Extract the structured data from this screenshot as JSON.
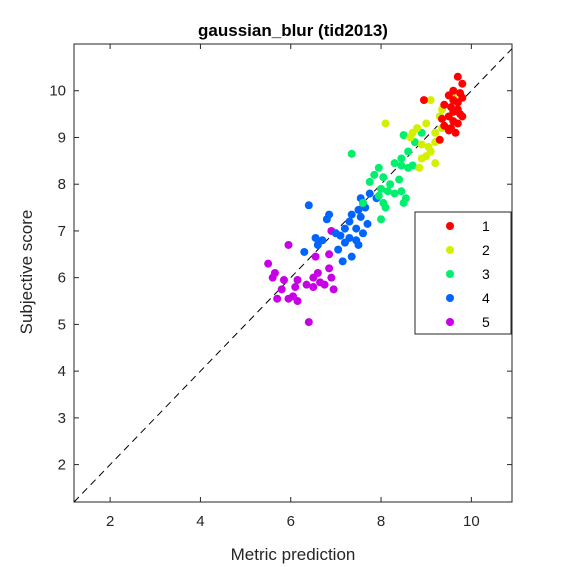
{
  "chart_data": {
    "type": "scatter",
    "title": "gaussian_blur (tid2013)",
    "xlabel": "Metric prediction",
    "ylabel": "Subjective score",
    "xlim": [
      1.2,
      10.9
    ],
    "ylim": [
      1.2,
      11.0
    ],
    "xticks": [
      "2",
      "4",
      "6",
      "8",
      "10"
    ],
    "yticks": [
      "2",
      "3",
      "4",
      "5",
      "6",
      "7",
      "8",
      "9",
      "10"
    ],
    "xtick_values": [
      2,
      4,
      6,
      8,
      10
    ],
    "ytick_values": [
      2,
      3,
      4,
      5,
      6,
      7,
      8,
      9,
      10
    ],
    "reference_line": "dashed y = x",
    "grid": false,
    "legend_position": "right",
    "series": [
      {
        "name": "1",
        "color": "#ff0000",
        "points": [
          [
            9.7,
            10.3
          ],
          [
            9.8,
            10.15
          ],
          [
            9.6,
            10.0
          ],
          [
            9.75,
            9.95
          ],
          [
            9.5,
            9.9
          ],
          [
            9.8,
            9.85
          ],
          [
            8.95,
            9.8
          ],
          [
            9.6,
            9.8
          ],
          [
            9.7,
            9.75
          ],
          [
            9.4,
            9.7
          ],
          [
            9.55,
            9.65
          ],
          [
            9.7,
            9.6
          ],
          [
            9.6,
            9.55
          ],
          [
            9.75,
            9.5
          ],
          [
            9.5,
            9.45
          ],
          [
            9.35,
            9.4
          ],
          [
            9.6,
            9.35
          ],
          [
            9.7,
            9.3
          ],
          [
            9.55,
            9.2
          ],
          [
            9.4,
            9.25
          ],
          [
            9.65,
            9.1
          ],
          [
            9.3,
            8.95
          ],
          [
            9.5,
            9.15
          ],
          [
            9.8,
            9.45
          ]
        ]
      },
      {
        "name": "2",
        "color": "#d4f000",
        "points": [
          [
            9.6,
            9.85
          ],
          [
            9.1,
            9.8
          ],
          [
            9.35,
            9.6
          ],
          [
            9.3,
            9.45
          ],
          [
            9.0,
            9.3
          ],
          [
            8.1,
            9.3
          ],
          [
            9.35,
            9.2
          ],
          [
            8.8,
            9.2
          ],
          [
            9.2,
            9.1
          ],
          [
            8.7,
            9.1
          ],
          [
            8.65,
            9.0
          ],
          [
            8.9,
            8.85
          ],
          [
            9.2,
            8.9
          ],
          [
            9.05,
            8.8
          ],
          [
            9.1,
            8.7
          ],
          [
            9.0,
            8.6
          ],
          [
            8.9,
            8.55
          ],
          [
            9.2,
            8.45
          ],
          [
            8.85,
            8.35
          ]
        ]
      },
      {
        "name": "3",
        "color": "#00f06e",
        "points": [
          [
            7.35,
            8.65
          ],
          [
            8.5,
            9.05
          ],
          [
            8.9,
            9.1
          ],
          [
            8.75,
            8.9
          ],
          [
            8.6,
            8.7
          ],
          [
            8.45,
            8.55
          ],
          [
            8.45,
            8.4
          ],
          [
            8.3,
            8.45
          ],
          [
            8.7,
            8.4
          ],
          [
            8.6,
            8.35
          ],
          [
            7.95,
            8.35
          ],
          [
            7.85,
            8.2
          ],
          [
            8.05,
            8.15
          ],
          [
            8.2,
            8.0
          ],
          [
            8.0,
            7.9
          ],
          [
            8.15,
            7.85
          ],
          [
            8.3,
            7.8
          ],
          [
            7.75,
            8.05
          ],
          [
            7.95,
            7.75
          ],
          [
            8.05,
            7.6
          ],
          [
            8.45,
            7.85
          ],
          [
            8.55,
            7.7
          ],
          [
            8.1,
            7.5
          ],
          [
            8.0,
            7.25
          ],
          [
            8.5,
            7.6
          ],
          [
            8.4,
            8.1
          ],
          [
            7.6,
            7.6
          ]
        ]
      },
      {
        "name": "4",
        "color": "#0064ff",
        "points": [
          [
            6.4,
            7.55
          ],
          [
            7.75,
            7.8
          ],
          [
            7.55,
            7.7
          ],
          [
            7.9,
            7.7
          ],
          [
            7.6,
            7.6
          ],
          [
            7.65,
            7.5
          ],
          [
            7.5,
            7.45
          ],
          [
            7.55,
            7.3
          ],
          [
            6.85,
            7.35
          ],
          [
            6.8,
            7.25
          ],
          [
            7.35,
            7.35
          ],
          [
            7.3,
            7.2
          ],
          [
            7.2,
            7.05
          ],
          [
            7.45,
            7.05
          ],
          [
            7.7,
            7.15
          ],
          [
            7.0,
            6.95
          ],
          [
            7.1,
            6.9
          ],
          [
            7.3,
            6.85
          ],
          [
            7.45,
            6.8
          ],
          [
            7.6,
            6.95
          ],
          [
            6.55,
            6.85
          ],
          [
            6.7,
            6.8
          ],
          [
            7.2,
            6.75
          ],
          [
            7.5,
            6.7
          ],
          [
            7.05,
            6.6
          ],
          [
            7.35,
            6.45
          ],
          [
            7.15,
            6.35
          ],
          [
            6.3,
            6.55
          ],
          [
            6.6,
            6.7
          ]
        ]
      },
      {
        "name": "5",
        "color": "#c800e6",
        "points": [
          [
            5.95,
            6.7
          ],
          [
            6.9,
            7.0
          ],
          [
            6.55,
            6.45
          ],
          [
            6.85,
            6.5
          ],
          [
            5.5,
            6.3
          ],
          [
            6.85,
            6.2
          ],
          [
            5.65,
            6.1
          ],
          [
            6.6,
            6.1
          ],
          [
            6.5,
            6.0
          ],
          [
            5.6,
            6.0
          ],
          [
            6.15,
            5.95
          ],
          [
            6.9,
            6.0
          ],
          [
            5.85,
            5.95
          ],
          [
            6.65,
            5.9
          ],
          [
            6.75,
            5.85
          ],
          [
            6.35,
            5.85
          ],
          [
            6.5,
            5.8
          ],
          [
            6.1,
            5.8
          ],
          [
            5.8,
            5.75
          ],
          [
            6.95,
            5.75
          ],
          [
            6.05,
            5.6
          ],
          [
            5.95,
            5.55
          ],
          [
            5.7,
            5.55
          ],
          [
            6.15,
            5.5
          ],
          [
            6.4,
            5.05
          ]
        ]
      }
    ]
  }
}
